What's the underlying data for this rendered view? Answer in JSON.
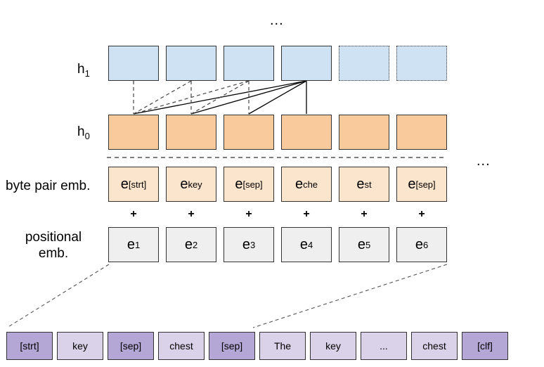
{
  "labels": {
    "h1": "h",
    "h1_sub": "1",
    "h0": "h",
    "h0_sub": "0",
    "byte_pair": "byte pair emb.",
    "positional_line1": "positional",
    "positional_line2": "emb.",
    "ellipsis": "..."
  },
  "plus": "+",
  "byte_pair_embeddings": [
    {
      "base": "e",
      "sub": "[strt]"
    },
    {
      "base": "e",
      "sub": "key"
    },
    {
      "base": "e",
      "sub": "[sep]"
    },
    {
      "base": "e",
      "sub": "che"
    },
    {
      "base": "e",
      "sub": "st"
    },
    {
      "base": "e",
      "sub": "[sep]"
    }
  ],
  "positional_embeddings": [
    {
      "base": "e",
      "sub": "1"
    },
    {
      "base": "e",
      "sub": "2"
    },
    {
      "base": "e",
      "sub": "3"
    },
    {
      "base": "e",
      "sub": "4"
    },
    {
      "base": "e",
      "sub": "5"
    },
    {
      "base": "e",
      "sub": "6"
    }
  ],
  "tokens": [
    {
      "text": "[strt]",
      "special": true
    },
    {
      "text": "key",
      "special": false
    },
    {
      "text": "[sep]",
      "special": true
    },
    {
      "text": "chest",
      "special": false
    },
    {
      "text": "[sep]",
      "special": true
    },
    {
      "text": "The",
      "special": false
    },
    {
      "text": "key",
      "special": false
    },
    {
      "text": "...",
      "special": false
    },
    {
      "text": "chest",
      "special": false
    },
    {
      "text": "[clf]",
      "special": true
    }
  ],
  "colors": {
    "h1_fill": "#cfe2f3",
    "h0_fill": "#f9cb9c",
    "byte_pair_fill": "#fce5cd",
    "positional_fill": "#efefef",
    "special_token_fill": "#b4a7d6",
    "word_token_fill": "#d9d2e9"
  }
}
